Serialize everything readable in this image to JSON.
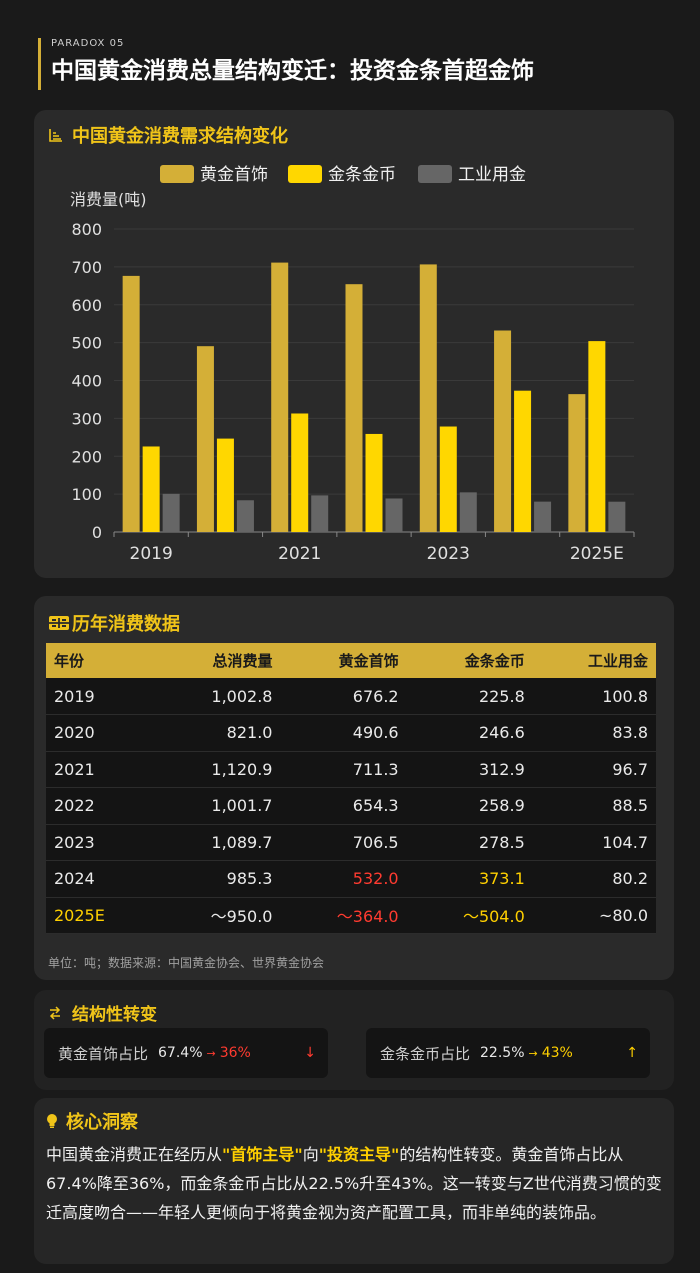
{
  "header": {
    "kicker": "PARADOX 05",
    "title": "中国黄金消费总量结构变迁：投资金条首超金饰"
  },
  "chart_section": {
    "title": "中国黄金消费需求结构变化"
  },
  "chart_data": {
    "type": "bar",
    "categories": [
      "2019",
      "2020",
      "2021",
      "2022",
      "2023",
      "2024",
      "2025E"
    ],
    "x_tick_labels": [
      "2019",
      "2021",
      "2023",
      "2025E"
    ],
    "ylabel": "消费量(吨)",
    "ylim": [
      0,
      800
    ],
    "yticks": [
      0,
      100,
      200,
      300,
      400,
      500,
      600,
      700,
      800
    ],
    "grid": true,
    "legend": "top-center",
    "series": [
      {
        "name": "黄金首饰",
        "color": "#d4af37",
        "values": [
          676.2,
          490.6,
          711.3,
          654.3,
          706.5,
          532.0,
          364.0
        ]
      },
      {
        "name": "金条金币",
        "color": "#ffd700",
        "values": [
          225.8,
          246.6,
          312.9,
          258.9,
          278.5,
          373.1,
          504.0
        ]
      },
      {
        "name": "工业用金",
        "color": "#666666",
        "values": [
          100.8,
          83.8,
          96.7,
          88.5,
          104.7,
          80.2,
          80.0
        ]
      }
    ]
  },
  "table_section": {
    "title": "历年消费数据",
    "headers": [
      "年份",
      "总消费量",
      "黄金首饰",
      "金条金币",
      "工业用金"
    ],
    "rows": [
      [
        "2019",
        "1,002.8",
        "676.2",
        "225.8",
        "100.8"
      ],
      [
        "2020",
        "821.0",
        "490.6",
        "246.6",
        "83.8"
      ],
      [
        "2021",
        "1,120.9",
        "711.3",
        "312.9",
        "96.7"
      ],
      [
        "2022",
        "1,001.7",
        "654.3",
        "258.9",
        "88.5"
      ],
      [
        "2023",
        "1,089.7",
        "706.5",
        "278.5",
        "104.7"
      ],
      [
        "2024",
        "985.3",
        "532.0",
        "373.1",
        "80.2"
      ],
      [
        "2025E",
        "～950.0",
        "～364.0",
        "～504.0",
        "~80.0"
      ]
    ],
    "footnote": "单位：吨；数据来源：中国黄金协会、世界黄金协会",
    "colors": {
      "red": "#ff3b30",
      "yellow": "#ffd000"
    }
  },
  "shift_section": {
    "title": "结构性转变",
    "items": [
      {
        "label": "黄金首饰占比",
        "from": "67.4%",
        "arrow": "→",
        "to": "36%",
        "trend": "↓",
        "color": "#ff3b30"
      },
      {
        "label": "金条金币占比",
        "from": "22.5%",
        "arrow": "→",
        "to": "43%",
        "trend": "↑",
        "color": "#ffd000"
      }
    ]
  },
  "insight_section": {
    "title": "核心洞察",
    "p1": "中国黄金消费正在经历从",
    "hl1": "\"首饰主导\"",
    "p2": "向",
    "hl2": "\"投资主导\"",
    "p3": "的结构性转变。黄金首饰占比从67.4%降至36%，而金条金币占比从22.5%升至43%。这一转变与Z世代消费习惯的变迁高度吻合——年轻人更倾向于将黄金视为资产配置工具，而非单纯的装饰品。"
  }
}
